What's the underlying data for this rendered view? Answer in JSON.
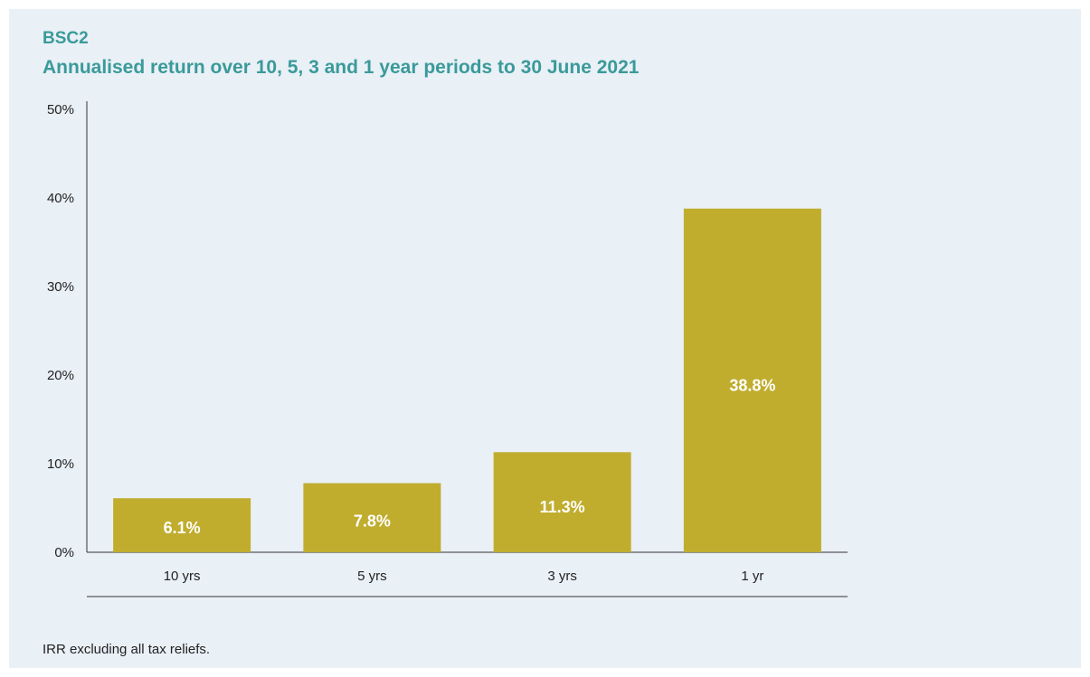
{
  "title": "BSC2",
  "subtitle": "Annualised return over 10, 5, 3 and 1 year periods to 30 June 2021",
  "footnote": "IRR excluding all tax reliefs.",
  "colors": {
    "bar": "#c0ad2e",
    "title": "#3a9a9a",
    "background": "#e9f0f6",
    "label_on_bar": "#ffffff"
  },
  "chart_data": {
    "type": "bar",
    "title": "BSC2",
    "subtitle": "Annualised return over 10, 5, 3 and 1 year periods to 30 June 2021",
    "categories": [
      "10 yrs",
      "5 yrs",
      "3 yrs",
      "1 yr"
    ],
    "values": [
      6.1,
      7.8,
      11.3,
      38.8
    ],
    "value_labels": [
      "6.1%",
      "7.8%",
      "11.3%",
      "38.8%"
    ],
    "xlabel": "",
    "ylabel": "",
    "ylim": [
      0,
      50
    ],
    "yticks": [
      0,
      10,
      20,
      30,
      40,
      50
    ],
    "ytick_labels": [
      "0%",
      "10%",
      "20%",
      "30%",
      "40%",
      "50%"
    ],
    "grid": false,
    "legend": "none"
  }
}
